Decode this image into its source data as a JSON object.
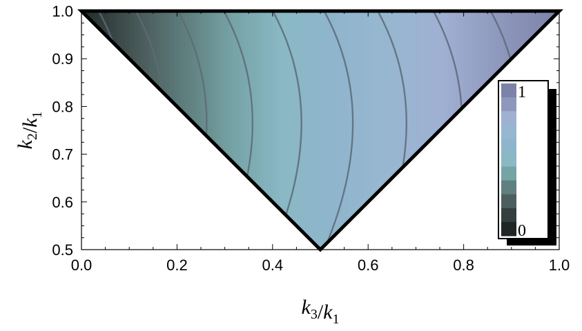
{
  "chart_data": {
    "type": "heatmap",
    "title": "",
    "xlabel": "k3/k1",
    "ylabel": "k2/k1",
    "xlim": [
      0.0,
      1.0
    ],
    "ylim": [
      0.5,
      1.0
    ],
    "x_ticks": [
      "0.0",
      "0.2",
      "0.4",
      "0.6",
      "0.8",
      "1.0"
    ],
    "y_ticks": [
      "0.5",
      "0.6",
      "0.7",
      "0.8",
      "0.9",
      "1.0"
    ],
    "region": {
      "shape": "triangle",
      "vertices": [
        [
          0.0,
          1.0
        ],
        [
          1.0,
          1.0
        ],
        [
          0.5,
          0.5
        ]
      ]
    },
    "colorbar": {
      "min_label": "0",
      "max_label": "1",
      "range": [
        0,
        1
      ],
      "colors": [
        "#1f2626",
        "#34403f",
        "#4c5f5e",
        "#607f7f",
        "#76a3a6",
        "#8ab8c4",
        "#8fb5cc",
        "#97b7d0",
        "#9fb0d2",
        "#8e98bc",
        "#7d82a8"
      ]
    },
    "contour_levels": [
      0.1,
      0.2,
      0.3,
      0.4,
      0.5,
      0.6,
      0.7,
      0.8,
      0.9
    ]
  }
}
